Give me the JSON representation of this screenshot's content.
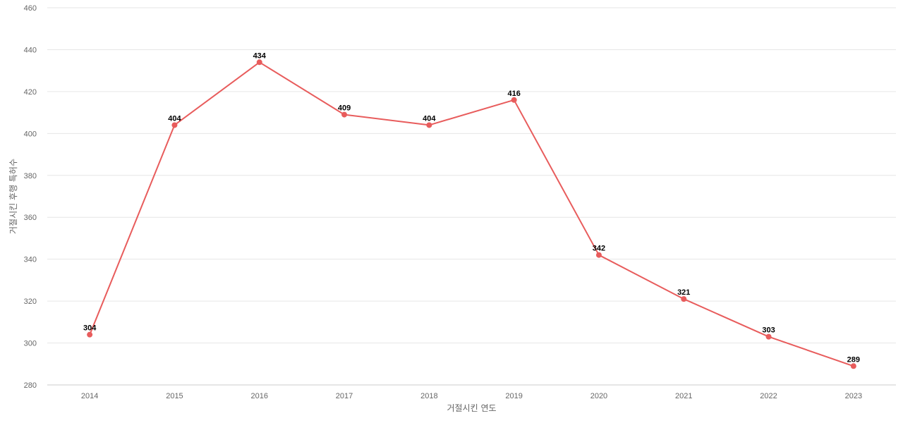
{
  "chart_data": {
    "type": "line",
    "xlabel": "거절시킨 연도",
    "ylabel": "거절시킨 후행 특허수",
    "categories": [
      "2014",
      "2015",
      "2016",
      "2017",
      "2018",
      "2019",
      "2020",
      "2021",
      "2022",
      "2023"
    ],
    "series": [
      {
        "values": [
          304,
          404,
          434,
          409,
          404,
          416,
          342,
          321,
          303,
          289
        ]
      }
    ],
    "ylim": [
      280,
      460
    ],
    "yticks": [
      280,
      300,
      320,
      340,
      360,
      380,
      400,
      420,
      440,
      460
    ],
    "grid": true,
    "legend": "none",
    "colors": {
      "line": "#e85c5c",
      "grid": "#e6e6e6",
      "axis": "#cccccc",
      "text": "#666666"
    }
  }
}
